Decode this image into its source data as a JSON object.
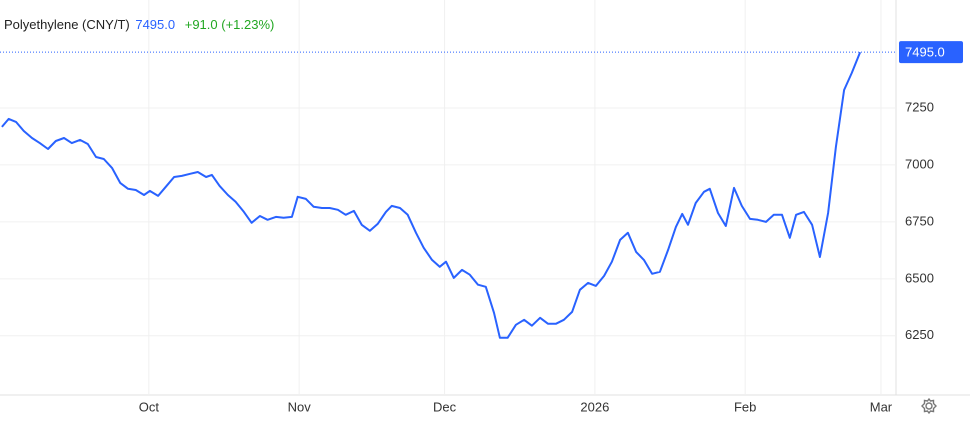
{
  "chart_data": {
    "type": "line",
    "title": "Polyethylene (CNY/T)",
    "last_label": "7495.0",
    "change": "+91.0",
    "change_pct": "(+1.23%)",
    "grid": true,
    "ylim": [
      5990,
      7724
    ],
    "yticks": [
      6250,
      6500,
      6750,
      7000,
      7250
    ],
    "xlim": [
      -30.7,
      153.9
    ],
    "xticks": [
      {
        "value": 0,
        "label": "Oct"
      },
      {
        "value": 31,
        "label": "Nov"
      },
      {
        "value": 61,
        "label": "Dec"
      },
      {
        "value": 92,
        "label": "2026"
      },
      {
        "value": 123,
        "label": "Feb"
      },
      {
        "value": 151,
        "label": "Mar"
      }
    ],
    "series": [
      {
        "name": "Polyethylene (CNY/T)",
        "color": "#2962ff",
        "x": [
          -30.3,
          -28.9,
          -27.4,
          -25.8,
          -24.1,
          -22.5,
          -20.8,
          -19.2,
          -17.5,
          -15.9,
          -14.2,
          -12.6,
          -10.9,
          -9.3,
          -7.6,
          -5.9,
          -4.3,
          -2.7,
          -1.0,
          0.2,
          1.9,
          3.5,
          5.2,
          6.8,
          8.5,
          10.1,
          11.8,
          13.0,
          14.6,
          16.3,
          17.9,
          19.6,
          21.2,
          22.9,
          24.5,
          26.2,
          27.8,
          29.5,
          30.7,
          32.4,
          34.0,
          35.7,
          37.3,
          39.0,
          40.6,
          42.3,
          43.9,
          45.6,
          47.2,
          48.9,
          50.1,
          51.8,
          53.4,
          55.1,
          56.7,
          58.4,
          60.0,
          61.3,
          62.9,
          64.6,
          66.2,
          67.9,
          69.5,
          71.2,
          72.4,
          74.0,
          75.7,
          77.4,
          79.0,
          80.7,
          82.3,
          84.0,
          85.6,
          87.3,
          88.9,
          90.6,
          92.2,
          93.9,
          95.5,
          97.2,
          98.8,
          100.5,
          102.1,
          103.8,
          105.4,
          107.1,
          108.7,
          110.0,
          111.2,
          112.8,
          114.5,
          115.7,
          117.4,
          119.0,
          120.7,
          122.3,
          124.0,
          125.6,
          127.3,
          128.9,
          130.6,
          132.2,
          133.5,
          135.1,
          136.8,
          138.4,
          140.1,
          141.7,
          143.4,
          145.0,
          146.7
        ],
        "values": [
          7167,
          7202,
          7189,
          7149,
          7118,
          7096,
          7070,
          7105,
          7118,
          7096,
          7110,
          7092,
          7035,
          7026,
          6987,
          6921,
          6895,
          6890,
          6868,
          6886,
          6864,
          6904,
          6947,
          6952,
          6961,
          6969,
          6947,
          6956,
          6908,
          6868,
          6838,
          6794,
          6746,
          6776,
          6759,
          6772,
          6768,
          6772,
          6860,
          6851,
          6816,
          6811,
          6811,
          6803,
          6781,
          6798,
          6737,
          6711,
          6741,
          6794,
          6820,
          6811,
          6781,
          6702,
          6636,
          6583,
          6553,
          6575,
          6504,
          6539,
          6518,
          6474,
          6465,
          6351,
          6241,
          6241,
          6298,
          6320,
          6294,
          6329,
          6303,
          6303,
          6320,
          6355,
          6452,
          6482,
          6469,
          6513,
          6575,
          6671,
          6702,
          6618,
          6583,
          6522,
          6531,
          6627,
          6728,
          6785,
          6737,
          6833,
          6882,
          6895,
          6789,
          6732,
          6899,
          6820,
          6763,
          6759,
          6750,
          6781,
          6781,
          6680,
          6781,
          6794,
          6737,
          6596,
          6789,
          7079,
          7329,
          7404,
          7495
        ]
      }
    ]
  }
}
